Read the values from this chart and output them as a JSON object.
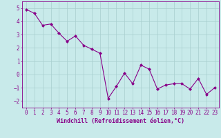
{
  "x": [
    0,
    1,
    2,
    3,
    4,
    5,
    6,
    7,
    8,
    9,
    10,
    11,
    12,
    13,
    14,
    15,
    16,
    17,
    18,
    19,
    20,
    21,
    22,
    23
  ],
  "y": [
    4.9,
    4.6,
    3.7,
    3.8,
    3.1,
    2.5,
    2.9,
    2.2,
    1.9,
    1.6,
    -1.8,
    -0.9,
    0.1,
    -0.7,
    0.7,
    0.4,
    -1.1,
    -0.8,
    -0.7,
    -0.7,
    -1.1,
    -0.3,
    -1.5,
    -1.0
  ],
  "line_color": "#880088",
  "marker": "D",
  "marker_size": 2.0,
  "bg_color": "#c8eaea",
  "grid_color": "#a8cece",
  "xlabel": "Windchill (Refroidissement éolien,°C)",
  "ylabel": "",
  "ylim": [
    -2.5,
    5.5
  ],
  "xlim": [
    -0.5,
    23.5
  ],
  "yticks": [
    -2,
    -1,
    0,
    1,
    2,
    3,
    4,
    5
  ],
  "xticks": [
    0,
    1,
    2,
    3,
    4,
    5,
    6,
    7,
    8,
    9,
    10,
    11,
    12,
    13,
    14,
    15,
    16,
    17,
    18,
    19,
    20,
    21,
    22,
    23
  ],
  "tick_color": "#880088",
  "label_color": "#880088",
  "tick_fontsize": 5.5,
  "xlabel_fontsize": 6.0,
  "line_width": 0.8
}
